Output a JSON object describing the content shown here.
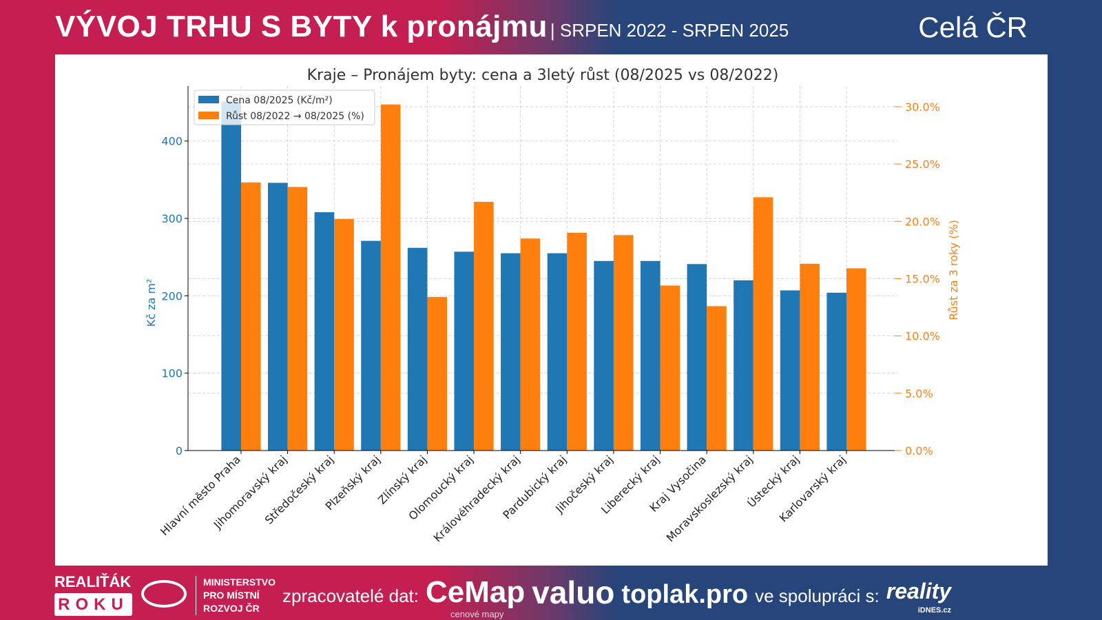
{
  "header": {
    "title": "VÝVOJ TRHU S BYTY k pronájmu",
    "period": "| SRPEN 2022 - SRPEN 2025",
    "region": "Celá ČR"
  },
  "footer": {
    "realitak": "REALIŤÁK",
    "roku": "ROKU",
    "mmr": [
      "MINISTERSTVO",
      "PRO MÍSTNÍ",
      "ROZVOJ ČR"
    ],
    "processors_label": "zpracovatelé dat:",
    "cemap": "CeMap",
    "cemap_sub": "cenové mapy",
    "valuo": "valuo",
    "toplak": "toplak.pro",
    "cooperation": "ve spolupráci s:",
    "reality": "reality",
    "idnes": "iDNES.cz"
  },
  "colors": {
    "price": "#1f77b4",
    "growth": "#ff7f0e"
  },
  "chart_data": {
    "type": "bar",
    "title": "Kraje – Pronájem byty: cena a 3letý růst (08/2025 vs 08/2022)",
    "ylabel": "Kč za m²",
    "y2label": "Růst za 3 roky (%)",
    "ylim": [
      0,
      471
    ],
    "y2lim": [
      0,
      31.8
    ],
    "yticks": [
      0,
      100,
      200,
      300,
      400
    ],
    "y2ticks": [
      0,
      5,
      10,
      15,
      20,
      25,
      30
    ],
    "y2tick_labels": [
      "0.0%",
      "5.0%",
      "10.0%",
      "15.0%",
      "20.0%",
      "25.0%",
      "30.0%"
    ],
    "grid": true,
    "legend_position": "top-left",
    "categories": [
      "Hlavní město Praha",
      "Jihomoravský kraj",
      "Středočeský kraj",
      "Plzeňský kraj",
      "Zlínský kraj",
      "Olomoucký kraj",
      "Královéhradecký kraj",
      "Pardubický kraj",
      "Jihočeský kraj",
      "Liberecký kraj",
      "Kraj Vysočina",
      "Moravskoslezský kraj",
      "Ústecký kraj",
      "Karlovarský kraj"
    ],
    "series": [
      {
        "name": "Cena 08/2025 (Kč/m²)",
        "axis": "left",
        "values": [
          451,
          346,
          308,
          271,
          262,
          257,
          255,
          255,
          245,
          245,
          241,
          220,
          207,
          204
        ]
      },
      {
        "name": "Růst 08/2022 → 08/2025 (%)",
        "axis": "right",
        "values": [
          23.4,
          23.0,
          20.2,
          30.2,
          13.4,
          21.7,
          18.5,
          19.0,
          18.8,
          14.4,
          12.6,
          22.1,
          16.3,
          15.9
        ]
      }
    ]
  }
}
